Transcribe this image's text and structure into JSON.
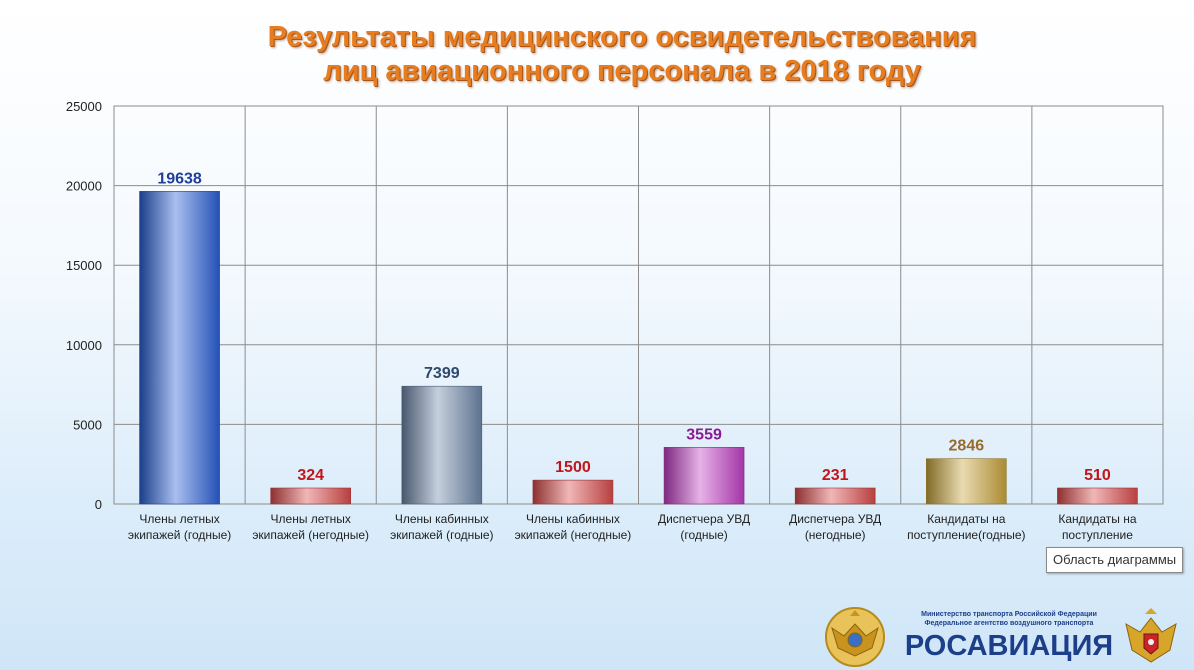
{
  "chart_data": {
    "type": "bar",
    "title_line1": "Результаты медицинского освидетельствования",
    "title_line2": "лиц авиационного персонала в 2018 году",
    "ylim": [
      0,
      25000
    ],
    "yticks": [
      "0",
      "5000",
      "10000",
      "15000",
      "20000",
      "25000"
    ],
    "grid": true,
    "categories": [
      [
        "Члены летных",
        "экипажей (годные)"
      ],
      [
        "Члены летных",
        "экипажей (негодные)"
      ],
      [
        "Члены кабинных",
        "экипажей (годные)"
      ],
      [
        "Члены кабинных",
        "экипажей (негодные)"
      ],
      [
        "Диспетчера УВД",
        "(годные)"
      ],
      [
        "Диспетчера УВД",
        "(негодные)"
      ],
      [
        "Кандидаты на",
        "поступление(годные)"
      ],
      [
        "Кандидаты на",
        "поступление"
      ]
    ],
    "values": [
      19638,
      324,
      7399,
      1500,
      3559,
      231,
      2846,
      510
    ],
    "data_labels": [
      "19638",
      "324",
      "7399",
      "1500",
      "3559",
      "231",
      "2846",
      "510"
    ],
    "bar_colors": [
      "#2a5fd6",
      "#d94a4a",
      "#6f86a8",
      "#d94a4a",
      "#c03ec4",
      "#d94a4a",
      "#c8a43c",
      "#d94a4a"
    ],
    "label_colors": [
      "#1f3f9a",
      "#c0161a",
      "#2d4a6b",
      "#c0161a",
      "#8a1a96",
      "#c0161a",
      "#9a6a2a",
      "#c0161a"
    ]
  },
  "tooltip": "Область диаграммы",
  "logo": {
    "ministry_line1": "Министерство транспорта Российской Федерации",
    "ministry_line2": "Федеральное агентство воздушного транспорта",
    "brand": "РОСАВИАЦИЯ"
  }
}
